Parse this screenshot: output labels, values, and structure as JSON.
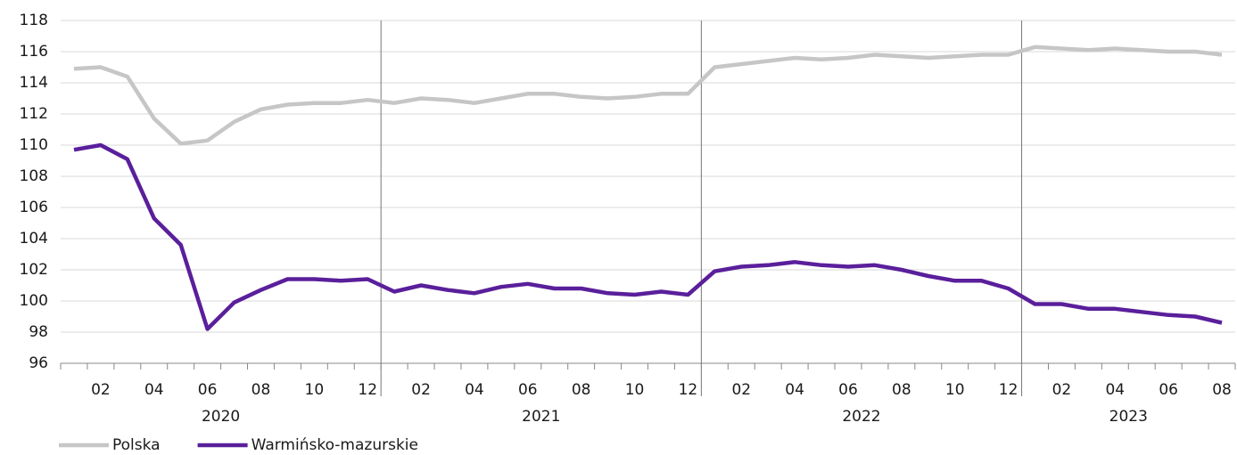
{
  "chart_data": {
    "type": "line",
    "groups": [
      {
        "label": "2020",
        "categories": [
          null,
          "02",
          null,
          "04",
          null,
          "06",
          null,
          "08",
          null,
          "10",
          null,
          "12"
        ]
      },
      {
        "label": "2021",
        "categories": [
          null,
          "02",
          null,
          "04",
          null,
          "06",
          null,
          "08",
          null,
          "10",
          null,
          "12"
        ]
      },
      {
        "label": "2022",
        "categories": [
          null,
          "02",
          null,
          "04",
          null,
          "06",
          null,
          "08",
          null,
          "10",
          null,
          "12"
        ]
      },
      {
        "label": "2023",
        "categories": [
          null,
          "02",
          null,
          "04",
          null,
          "06",
          null,
          "08"
        ]
      }
    ],
    "series": [
      {
        "name": "Polska",
        "color": "#c6c6c6",
        "values": [
          114.9,
          115.0,
          114.4,
          111.7,
          110.1,
          110.3,
          111.5,
          112.3,
          112.6,
          112.7,
          112.7,
          112.9,
          112.7,
          113.0,
          112.9,
          112.7,
          113.0,
          113.3,
          113.3,
          113.1,
          113.0,
          113.1,
          113.3,
          113.3,
          115.0,
          115.2,
          115.4,
          115.6,
          115.5,
          115.6,
          115.8,
          115.7,
          115.6,
          115.7,
          115.8,
          115.8,
          116.3,
          116.2,
          116.1,
          116.2,
          116.1,
          116.0,
          116.0,
          115.8
        ]
      },
      {
        "name": "Warmińsko-mazurskie",
        "color": "#5a1f9b",
        "values": [
          109.7,
          110.0,
          109.1,
          105.3,
          103.6,
          98.2,
          99.9,
          100.7,
          101.4,
          101.4,
          101.3,
          101.4,
          100.6,
          101.0,
          100.7,
          100.5,
          100.9,
          101.1,
          100.8,
          100.8,
          100.5,
          100.4,
          100.6,
          100.4,
          101.9,
          102.2,
          102.3,
          102.5,
          102.3,
          102.2,
          102.3,
          102.0,
          101.6,
          101.3,
          101.3,
          100.8,
          99.8,
          99.8,
          99.5,
          99.5,
          99.3,
          99.1,
          99.0,
          98.6
        ]
      }
    ],
    "ylim": [
      96,
      118
    ],
    "yticks": [
      96,
      98,
      100,
      102,
      104,
      106,
      108,
      110,
      112,
      114,
      116,
      118
    ],
    "grid": true
  }
}
